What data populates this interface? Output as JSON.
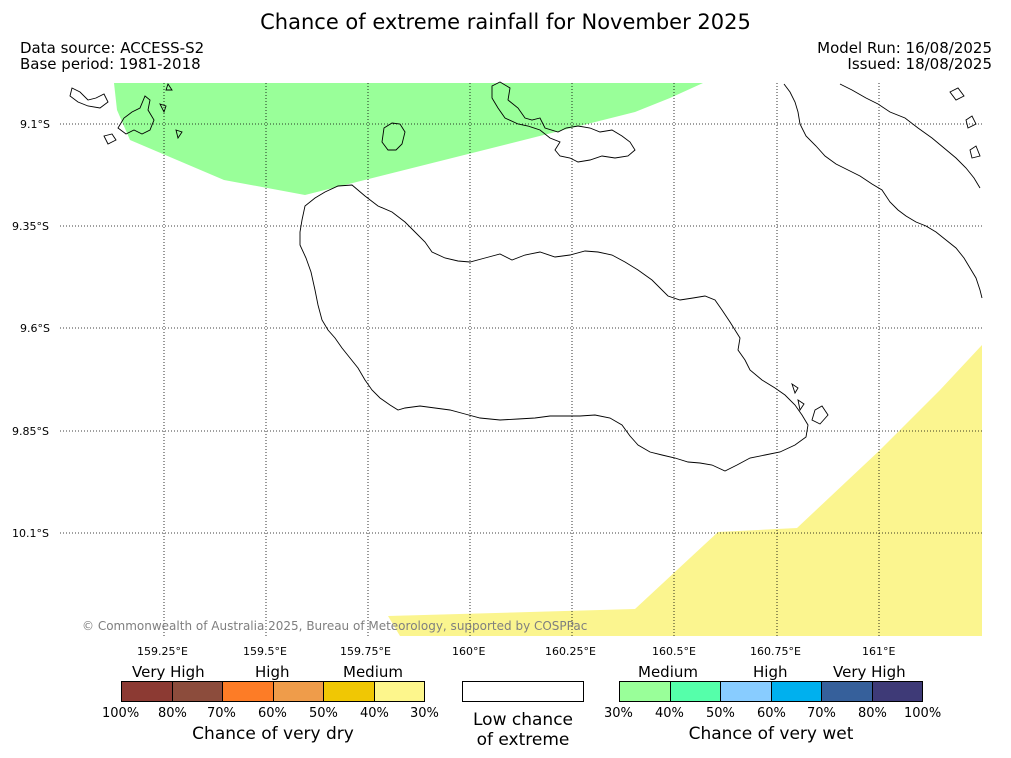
{
  "title": "Chance of extreme rainfall for November 2025",
  "info": {
    "data_source": "Data source: ACCESS-S2",
    "base_period": "Base period: 1981-2018",
    "model_run": "Model Run: 16/08/2025",
    "issued": "Issued: 18/08/2025"
  },
  "map": {
    "lon_labels": [
      "159.25°E",
      "159.5°E",
      "159.75°E",
      "160°E",
      "160.25°E",
      "160.5°E",
      "160.75°E",
      "161°E"
    ],
    "lat_labels": [
      "9.1°S",
      "9.35°S",
      "9.6°S",
      "9.85°S",
      "10.1°S"
    ],
    "copyright": "© Commonwealth of Australia 2025, Bureau of Meteorology, supported by COSPPac",
    "regions": [
      {
        "name": "north-west",
        "category": "Chance of very wet",
        "level": "Medium",
        "range": "30%-40%",
        "color": "#99ff99"
      },
      {
        "name": "south-east",
        "category": "Chance of very dry",
        "level": "Medium",
        "range": "30%-40%",
        "color": "#fbf58f"
      }
    ],
    "colors": {
      "land_outline": "#000000",
      "grid": "#000000"
    }
  },
  "legend": {
    "dry": {
      "headers": [
        "Very High",
        "High",
        "Medium"
      ],
      "colors": [
        "#8c3a33",
        "#8c4c3c",
        "#fd7c26",
        "#ef9c4a",
        "#f0c704",
        "#fdf68c"
      ],
      "ticks": [
        "100%",
        "80%",
        "70%",
        "60%",
        "50%",
        "40%",
        "30%"
      ],
      "title": "Chance of very dry"
    },
    "low": {
      "title_line1": "Low chance",
      "title_line2": "of extreme"
    },
    "wet": {
      "headers": [
        "Medium",
        "High",
        "Very High"
      ],
      "colors": [
        "#99ff99",
        "#55ffaa",
        "#88ccff",
        "#00b0ee",
        "#36609b",
        "#3e3a77"
      ],
      "ticks": [
        "30%",
        "40%",
        "50%",
        "60%",
        "70%",
        "80%",
        "100%"
      ],
      "title": "Chance of very wet"
    }
  }
}
